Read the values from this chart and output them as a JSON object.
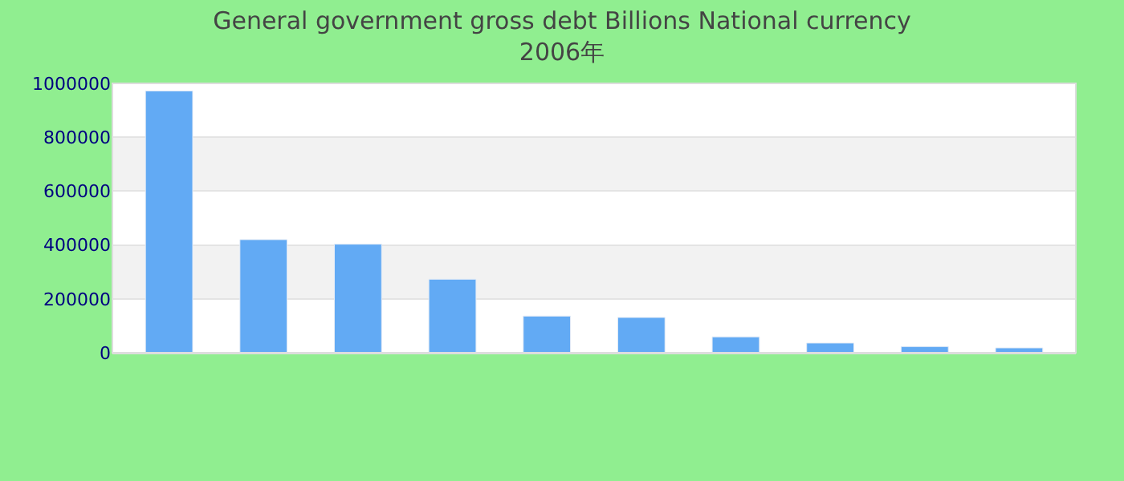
{
  "chart_data": {
    "type": "bar",
    "title": "General government gross debt Billions National currency",
    "subtitle": "2006年",
    "categories": [
      null,
      null,
      null,
      null,
      null,
      null,
      null,
      null,
      null,
      null
    ],
    "values": [
      972000,
      420000,
      403000,
      273000,
      136000,
      131000,
      59000,
      36000,
      23000,
      18000
    ],
    "color": "#62aaf4",
    "ylim": [
      0,
      1000000
    ],
    "yticks": [
      0,
      200000,
      400000,
      600000,
      800000,
      1000000
    ],
    "grid": "y"
  }
}
